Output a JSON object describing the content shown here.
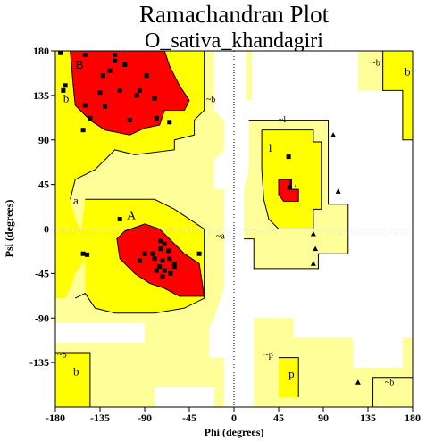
{
  "chart_data": {
    "type": "scatter",
    "title": "Ramachandran Plot",
    "subtitle": "O_sativa_khandagiri",
    "xlabel": "Phi (degrees)",
    "ylabel": "Psi (degrees)",
    "xlim": [
      -180,
      180
    ],
    "ylim": [
      -180,
      180
    ],
    "xticks": [
      -180,
      -135,
      -90,
      -45,
      0,
      45,
      90,
      135,
      180
    ],
    "yticks": [
      180,
      135,
      90,
      45,
      0,
      -45,
      -90,
      -135
    ],
    "grid": false,
    "colors": {
      "most_favoured": "#ff0000",
      "additional_allowed": "#ffff00",
      "generously_allowed": "#ffff99",
      "disallowed": "#ffffff",
      "points": "#000000"
    },
    "region_labels": [
      {
        "text": "A",
        "phi": -108,
        "psi": 10
      },
      {
        "text": "B",
        "phi": -160,
        "psi": 162
      },
      {
        "text": "b",
        "phi": -172,
        "psi": 128
      },
      {
        "text": "a",
        "phi": -162,
        "psi": 25
      },
      {
        "text": "~b",
        "phi": -28,
        "psi": 128
      },
      {
        "text": "~a",
        "phi": -18,
        "psi": -10
      },
      {
        "text": "~l",
        "phi": 45,
        "psi": 108
      },
      {
        "text": "l",
        "phi": 35,
        "psi": 78
      },
      {
        "text": "L",
        "phi": 55,
        "psi": 42
      },
      {
        "text": "~b",
        "phi": 138,
        "psi": 165
      },
      {
        "text": "b",
        "phi": 172,
        "psi": 155
      },
      {
        "text": "~b",
        "phi": -178,
        "psi": -130
      },
      {
        "text": "b",
        "phi": -162,
        "psi": -148
      },
      {
        "text": "~p",
        "phi": 30,
        "psi": -130
      },
      {
        "text": "p",
        "phi": 55,
        "psi": -150
      },
      {
        "text": "~b",
        "phi": 152,
        "psi": -158
      }
    ],
    "series": [
      {
        "marker": "square",
        "points": [
          [
            -175,
            178
          ],
          [
            -172,
            140
          ],
          [
            -170,
            145
          ],
          [
            -152,
            100
          ],
          [
            -120,
            176
          ],
          [
            -120,
            170
          ],
          [
            -125,
            160
          ],
          [
            -132,
            155
          ],
          [
            -135,
            138
          ],
          [
            -130,
            124
          ],
          [
            -115,
            140
          ],
          [
            -98,
            135
          ],
          [
            -95,
            140
          ],
          [
            -88,
            155
          ],
          [
            -80,
            132
          ],
          [
            -78,
            112
          ],
          [
            -65,
            108
          ],
          [
            -105,
            110
          ],
          [
            -145,
            112
          ],
          [
            -150,
            176
          ],
          [
            -110,
            166
          ],
          [
            -150,
            125
          ],
          [
            -115,
            10
          ],
          [
            -74,
            -12
          ],
          [
            -70,
            -15
          ],
          [
            -74,
            -20
          ],
          [
            -66,
            -22
          ],
          [
            -82,
            -25
          ],
          [
            -95,
            -32
          ],
          [
            -90,
            -25
          ],
          [
            -80,
            -30
          ],
          [
            -72,
            -32
          ],
          [
            -75,
            -38
          ],
          [
            -70,
            -42
          ],
          [
            -60,
            -38
          ],
          [
            -64,
            -45
          ],
          [
            -72,
            -48
          ],
          [
            -78,
            -42
          ],
          [
            -60,
            -35
          ],
          [
            -35,
            -25
          ],
          [
            -152,
            -25
          ],
          [
            -148,
            -26
          ],
          [
            55,
            73
          ],
          [
            56,
            42
          ],
          [
            -65,
            -30
          ]
        ]
      },
      {
        "marker": "triangle",
        "points": [
          [
            100,
            95
          ],
          [
            105,
            38
          ],
          [
            80,
            -5
          ],
          [
            82,
            -20
          ],
          [
            80,
            -35
          ],
          [
            125,
            -155
          ]
        ]
      }
    ]
  }
}
